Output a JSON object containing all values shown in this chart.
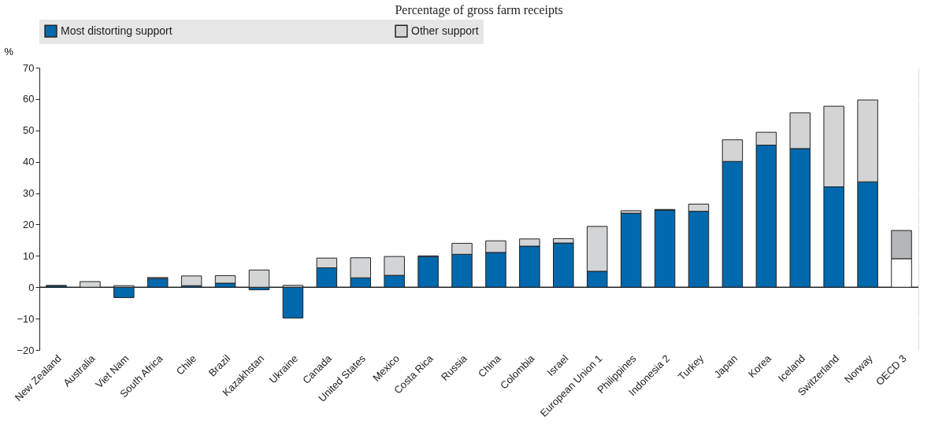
{
  "chart_data": {
    "type": "bar",
    "title": "Percentage of gross farm receipts",
    "ylabel": "%",
    "categories": [
      "New Zealand",
      "Australia",
      "Viet Nam",
      "South Africa",
      "Chile",
      "Brazil",
      "Kazakhstan",
      "Ukraine",
      "Canada",
      "United States",
      "Mexico",
      "Costa Rica",
      "Russia",
      "China",
      "Colombia",
      "Israel",
      "European Union 1",
      "Philippines",
      "Indonesia 2",
      "Turkey",
      "Japan",
      "Korea",
      "Iceland",
      "Switzerland",
      "Norway",
      "OECD 3"
    ],
    "series": [
      {
        "name": "Most distorting support",
        "color": "#0068ad",
        "colors": [
          "#0068ad",
          "#0068ad",
          "#0068ad",
          "#0068ad",
          "#0068ad",
          "#0068ad",
          "#0068ad",
          "#0068ad",
          "#0068ad",
          "#0068ad",
          "#0068ad",
          "#0068ad",
          "#0068ad",
          "#0068ad",
          "#0068ad",
          "#0068ad",
          "#0068ad",
          "#0068ad",
          "#0068ad",
          "#0068ad",
          "#0068ad",
          "#0068ad",
          "#0068ad",
          "#0068ad",
          "#0068ad",
          "#ffffff"
        ],
        "values": [
          0.4,
          0,
          -3.3,
          2.8,
          0.5,
          1.3,
          -0.8,
          -9.8,
          6.2,
          3.0,
          3.8,
          9.8,
          10.5,
          11.1,
          13.1,
          14.1,
          5.1,
          23.6,
          24.6,
          24.2,
          40.1,
          45.3,
          44.2,
          32.0,
          33.6,
          9.1
        ]
      },
      {
        "name": "Other support",
        "color": "#d3d4d6",
        "colors": [
          "#d3d4d6",
          "#d3d4d6",
          "#d3d4d6",
          "#d3d4d6",
          "#d3d4d6",
          "#d3d4d6",
          "#d3d4d6",
          "#d3d4d6",
          "#d3d4d6",
          "#d3d4d6",
          "#d3d4d6",
          "#d3d4d6",
          "#d3d4d6",
          "#d3d4d6",
          "#d3d4d6",
          "#d3d4d6",
          "#d3d4d6",
          "#d3d4d6",
          "#d3d4d6",
          "#d3d4d6",
          "#d3d4d6",
          "#d3d4d6",
          "#d3d4d6",
          "#d3d4d6",
          "#d3d4d6",
          "#b4b5b9"
        ],
        "values": [
          0.2,
          1.8,
          0.5,
          0.3,
          3.1,
          2.4,
          5.5,
          0.6,
          3.1,
          6.4,
          6.0,
          0.2,
          3.5,
          3.7,
          2.3,
          1.4,
          14.3,
          0.8,
          0.2,
          2.3,
          6.9,
          4.1,
          11.4,
          25.7,
          26.1,
          9.0
        ]
      }
    ],
    "stacked": true,
    "ylim": [
      -20,
      70
    ],
    "yticks": [
      -20,
      -10,
      0,
      10,
      20,
      30,
      40,
      50,
      60,
      70
    ],
    "grid": "y",
    "legend": "top"
  }
}
